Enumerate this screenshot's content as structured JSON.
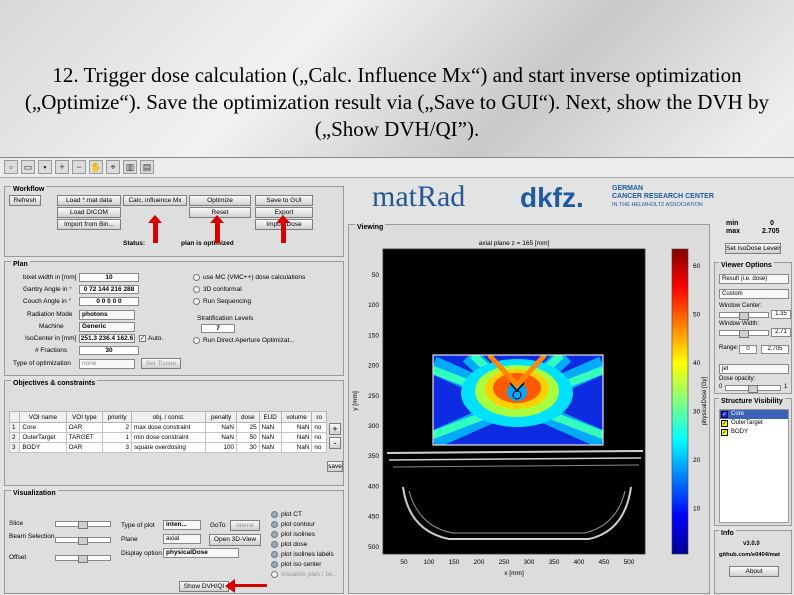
{
  "slide": {
    "title": "12. Trigger dose calculation („Calc. Influence Mx“) and start inverse optimization („Optimize“). Save the optimization result via („Save to GUI“). Next, show the DVH by („Show DVH/QI”)."
  },
  "toolbar": {
    "icons": [
      "new-file-icon",
      "open-file-icon",
      "save-file-icon",
      "zoom-in-icon",
      "zoom-out-icon",
      "pan-hand-icon",
      "data-cursor-icon",
      "colorbar-icon",
      "legend-icon"
    ]
  },
  "workflow": {
    "title": "Workflow",
    "refresh": "Refresh",
    "load_mat": "Load *.mat data",
    "calc_influence": "Calc. influence Mx",
    "optimize": "Optimize",
    "save_gui": "Save to GUI",
    "load_dicom": "Load DICOM",
    "reset": "Reset",
    "export": "Export",
    "import_bin": "Import from Bin...",
    "import_dose": "Import Dose",
    "status_label": "Status:",
    "status_value": "plan is optimized"
  },
  "logos": {
    "matrad": "matRad",
    "dkfz": "dkfz.",
    "dkfz_line1": "GERMAN",
    "dkfz_line2": "CANCER RESEARCH CENTER",
    "dkfz_line3": "IN THE HELMHOLTZ ASSOCIATION"
  },
  "minmax": {
    "min_label": "min",
    "max_label": "max",
    "min_value": "0",
    "max_value": "2.705"
  },
  "iso_button": "Set IsoDose Levels",
  "plan": {
    "title": "Plan",
    "bixel_label": "bixel width in [mm]",
    "bixel_value": "10",
    "gantry_label": "Gantry Angle in °",
    "gantry_value": "0 72 144 216 288",
    "couch_label": "Couch Angle in °",
    "couch_value": "0 0 0 0 0",
    "radiation_label": "Radiation Mode",
    "radiation_value": "photons",
    "machine_label": "Machine",
    "machine_value": "Generic",
    "isocenter_label": "IsoCenter in [mm]",
    "isocenter_value": "251.3 236.4 162.6",
    "auto_label": "Auto.",
    "fractions_label": "# Fractions",
    "fractions_value": "30",
    "opttype_label": "Type of optimization",
    "opttype_value": "none",
    "set_tissue": "Set Tissue",
    "mc_label": "use MC (VMC++) dose calculations",
    "conformal_label": "3D conformal",
    "sequencing_label": "Run Sequencing",
    "strat_label": "Stratification Levels",
    "strat_value": "7",
    "dao_label": "Run Direct Aperture Optimizat..."
  },
  "objectives": {
    "title": "Objectives & constraints",
    "headers": [
      "VOI name",
      "VOI type",
      "priority",
      "obj. / const.",
      "penalty",
      "dose",
      "EUD",
      "volume",
      "ro"
    ],
    "rows": [
      {
        "idx": "1",
        "name": "Core",
        "type": "OAR",
        "priority": "2",
        "obj": "max dose constraint",
        "penalty": "NaN",
        "dose": "25",
        "eud": "NaN",
        "volume": "NaN",
        "ro": "no"
      },
      {
        "idx": "2",
        "name": "OuterTarget",
        "type": "TARGET",
        "priority": "1",
        "obj": "min dose constraint",
        "penalty": "NaN",
        "dose": "50",
        "eud": "NaN",
        "volume": "NaN",
        "ro": "no"
      },
      {
        "idx": "3",
        "name": "BODY",
        "type": "OAR",
        "priority": "3",
        "obj": "square overdosing",
        "penalty": "100",
        "dose": "30",
        "eud": "NaN",
        "volume": "NaN",
        "ro": "no"
      }
    ],
    "plus": "+",
    "minus": "-",
    "save": "save"
  },
  "viz": {
    "title": "Visualization",
    "slice_label": "Slice",
    "beam_label": "Beam Selection",
    "offset_label": "Offset",
    "plottype_label": "Type of plot",
    "plottype_value": "inten...",
    "goto_label": "GoTo",
    "lateral": "lateral",
    "plane_label": "Plane",
    "plane_value": "axial",
    "open3d": "Open 3D-View",
    "display_label": "Display option",
    "display_value": "physicalDose",
    "show_dvh": "Show DVH/QI",
    "checks": [
      "plot CT",
      "plot contour",
      "plot isolines",
      "plot dose",
      "plot isolines labels",
      "plot iso center",
      "visualize plan / be..."
    ]
  },
  "viewing": {
    "title": "Viewing",
    "plot_title": "axial plane z = 165 [mm]",
    "ylabel": "y [mm]",
    "xlabel": "x [mm]",
    "yticks": [
      "50",
      "100",
      "150",
      "200",
      "250",
      "300",
      "350",
      "400",
      "450",
      "500"
    ],
    "xticks": [
      "50",
      "100",
      "150",
      "200",
      "250",
      "300",
      "350",
      "400",
      "450",
      "500"
    ],
    "cb_label": "physicalDose [Gy]",
    "cb_ticks": [
      "60",
      "50",
      "40",
      "30",
      "20",
      "10"
    ]
  },
  "options": {
    "title": "Viewer Options",
    "scale_value": "Result (i.e. dose)",
    "colormap_preset_value": "Custom",
    "window_center_label": "Window Center:",
    "window_center_value": "1.35",
    "window_width_label": "Window Width:",
    "window_width_value": "2.71",
    "range_label": "Range:",
    "range_min": "0",
    "range_max": "2.705",
    "cmap_value": "jet",
    "opacity_label": "Dose opacity:",
    "opacity_value": "1",
    "opacity_min": "0"
  },
  "structures": {
    "title": "Structure Visibility",
    "items": [
      {
        "name": "Core",
        "color": "#2222ff",
        "selected": true
      },
      {
        "name": "OuterTarget",
        "color": "#ffff00",
        "selected": false
      },
      {
        "name": "BODY",
        "color": "#ffff00",
        "selected": false
      }
    ]
  },
  "info": {
    "title": "Info",
    "version": "v3.0.0",
    "repo": "github.com/e0404/mat",
    "about": "About"
  }
}
